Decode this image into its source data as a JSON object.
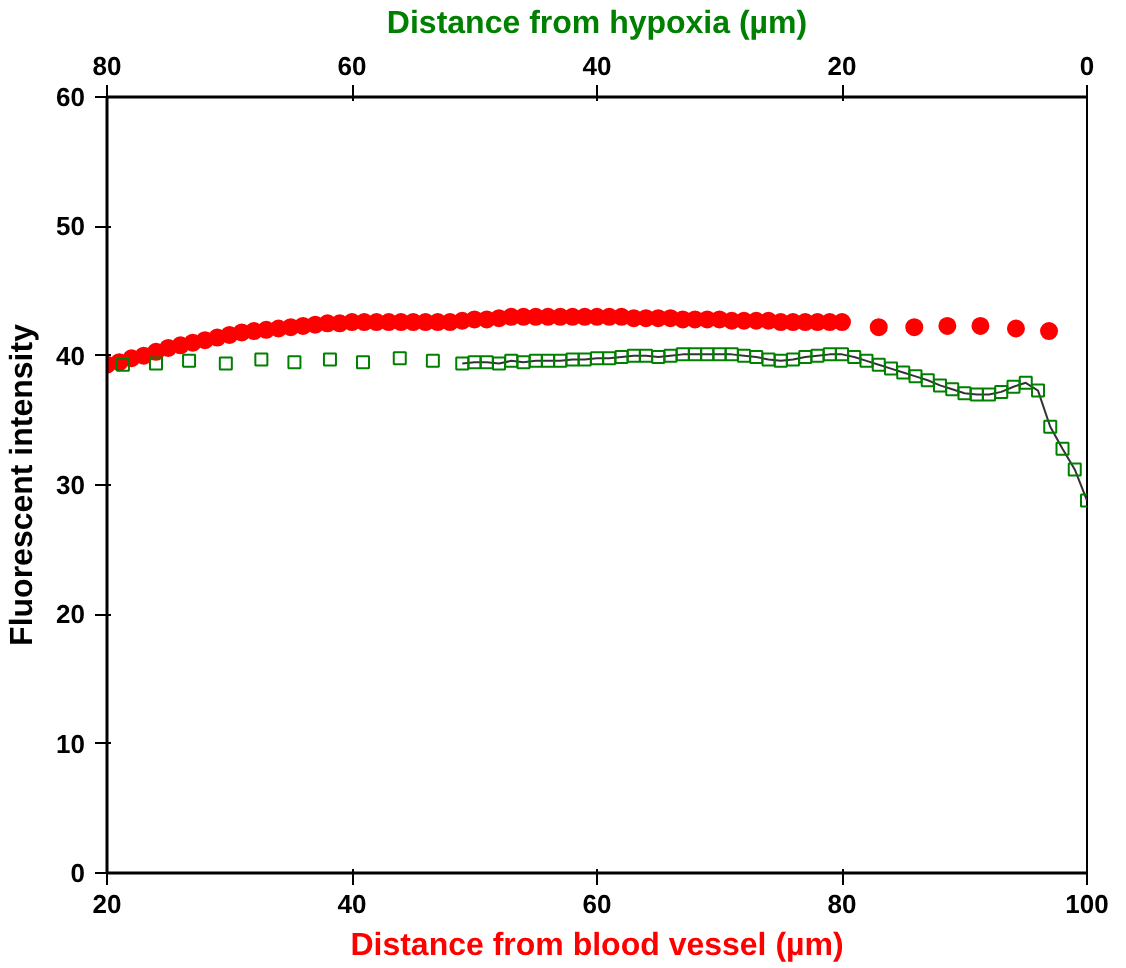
{
  "chart_data": {
    "type": "scatter",
    "xlabel": "Distance from blood vessel (µm)",
    "x2label": "Distance from hypoxia (µm)",
    "ylabel": "Fluorescent intensity",
    "xlim": [
      20,
      100
    ],
    "xticks": [
      20,
      40,
      60,
      80,
      100
    ],
    "x2lim": [
      80,
      0
    ],
    "x2ticks": [
      80,
      60,
      40,
      20,
      0
    ],
    "ylim": [
      0,
      60
    ],
    "yticks": [
      0,
      10,
      20,
      30,
      40,
      50,
      60
    ],
    "grid": false,
    "series": [
      {
        "marker": "circle",
        "color": "#ff0000",
        "x": [
          20,
          21,
          22,
          23,
          24,
          25,
          26,
          27,
          28,
          29,
          30,
          31,
          32,
          33,
          34,
          35,
          36,
          37,
          38,
          39,
          40,
          41,
          42,
          43,
          44,
          45,
          46,
          47,
          48,
          49,
          50,
          51,
          52,
          53,
          54,
          55,
          56,
          57,
          58,
          59,
          60,
          61,
          62,
          63,
          64,
          65,
          66,
          67,
          68,
          69,
          70,
          71,
          72,
          73,
          74,
          75,
          76,
          77,
          78,
          79,
          80
        ],
        "values": [
          39.3,
          39.5,
          39.8,
          40.0,
          40.3,
          40.6,
          40.8,
          41.0,
          41.2,
          41.4,
          41.6,
          41.8,
          41.9,
          42.0,
          42.1,
          42.2,
          42.3,
          42.4,
          42.5,
          42.5,
          42.6,
          42.6,
          42.6,
          42.6,
          42.6,
          42.6,
          42.6,
          42.6,
          42.6,
          42.7,
          42.8,
          42.8,
          42.9,
          43.0,
          43.0,
          43.0,
          43.0,
          43.0,
          43.0,
          43.0,
          43.0,
          43.0,
          43.0,
          42.9,
          42.9,
          42.9,
          42.9,
          42.8,
          42.8,
          42.8,
          42.8,
          42.7,
          42.7,
          42.7,
          42.7,
          42.6,
          42.6,
          42.6,
          42.6,
          42.6,
          42.6
        ]
      },
      {
        "marker": "circle",
        "color": "#ff0000",
        "x": [
          83.0,
          85.9,
          88.6,
          91.3,
          94.2,
          96.9
        ],
        "values": [
          42.2,
          42.2,
          42.3,
          42.3,
          42.1,
          41.9
        ]
      },
      {
        "marker": "square",
        "color": "#008000",
        "x": [
          21.3,
          24.0,
          26.7,
          29.7,
          32.6,
          35.3,
          38.2,
          40.9,
          43.9,
          46.6
        ],
        "values": [
          39.3,
          39.4,
          39.6,
          39.4,
          39.7,
          39.5,
          39.7,
          39.5,
          39.8,
          39.6
        ]
      },
      {
        "type": "line",
        "marker": "square",
        "color": "#008000",
        "x": [
          49,
          50,
          51,
          52,
          53,
          54,
          55,
          56,
          57,
          58,
          59,
          60,
          61,
          62,
          63,
          64,
          65,
          66,
          67,
          68,
          69,
          70,
          71,
          72,
          73,
          74,
          75,
          76,
          77,
          78,
          79,
          80,
          81,
          82,
          83,
          84,
          85,
          86,
          87,
          88,
          89,
          90,
          91,
          92,
          93,
          94,
          95,
          96,
          97,
          98,
          99,
          100
        ],
        "values": [
          39.4,
          39.5,
          39.5,
          39.4,
          39.6,
          39.5,
          39.6,
          39.6,
          39.6,
          39.7,
          39.7,
          39.8,
          39.8,
          39.9,
          40.0,
          40.0,
          39.9,
          40.0,
          40.1,
          40.1,
          40.1,
          40.1,
          40.1,
          40.0,
          39.9,
          39.7,
          39.6,
          39.7,
          39.9,
          40.0,
          40.1,
          40.1,
          39.9,
          39.6,
          39.3,
          39.0,
          38.7,
          38.4,
          38.1,
          37.7,
          37.4,
          37.1,
          37.0,
          37.0,
          37.2,
          37.6,
          37.9,
          37.3,
          34.5,
          32.8,
          31.2,
          28.8
        ]
      }
    ]
  }
}
